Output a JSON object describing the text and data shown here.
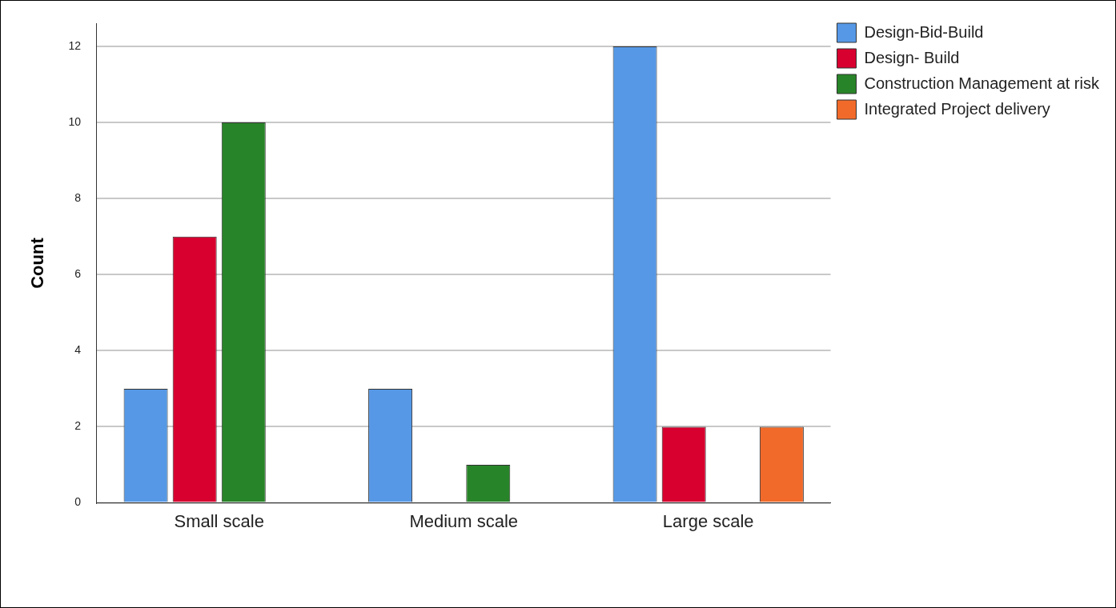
{
  "chart_data": {
    "type": "bar",
    "ylabel": "Count",
    "categories": [
      "Small scale",
      "Medium scale",
      "Large scale"
    ],
    "series": [
      {
        "name": "Design-Bid-Build",
        "color": "#5698e6",
        "values": [
          3,
          3,
          12
        ]
      },
      {
        "name": "Design- Build",
        "color": "#d7002f",
        "values": [
          7,
          null,
          2
        ]
      },
      {
        "name": "Construction Management at risk",
        "color": "#288428",
        "values": [
          10,
          1,
          null
        ]
      },
      {
        "name": "Integrated Project delivery",
        "color": "#f26a2a",
        "values": [
          null,
          null,
          2
        ]
      }
    ],
    "ylim": [
      0,
      12.6
    ],
    "yticks": [
      0,
      2,
      4,
      6,
      8,
      10,
      12
    ],
    "grid": "y",
    "legend": "top right"
  }
}
